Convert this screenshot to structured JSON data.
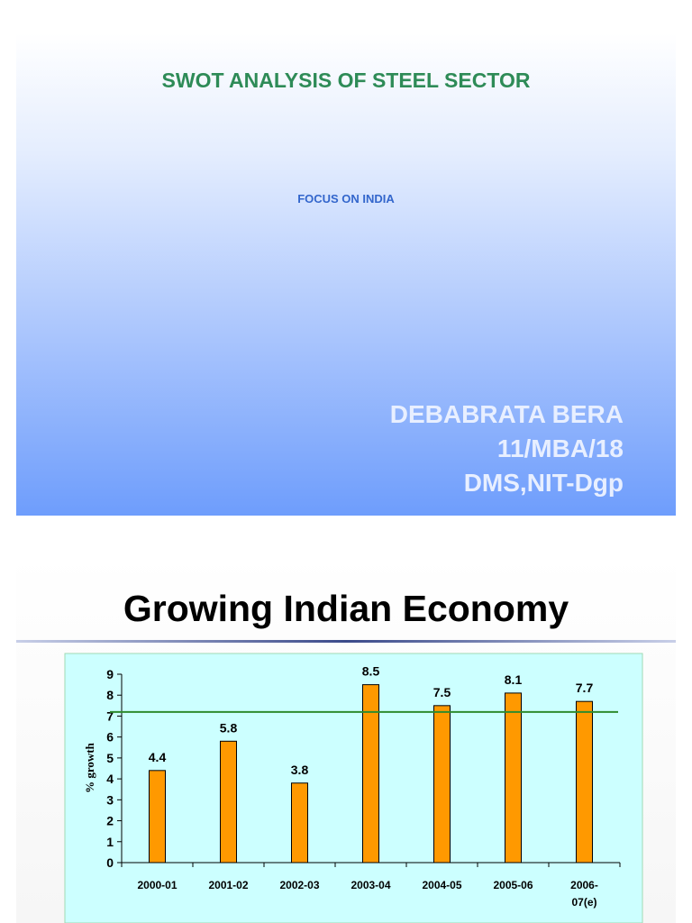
{
  "slide1": {
    "title": "SWOT ANALYSIS OF STEEL SECTOR",
    "subtitle": "FOCUS ON INDIA",
    "author_lines": [
      "DEBABRATA BERA",
      "11/MBA/18",
      "DMS,NIT-Dgp"
    ]
  },
  "slide2": {
    "title": "Growing Indian Economy"
  },
  "colors": {
    "bar": "#ff9900",
    "plot_background": "#ccffff",
    "reference_line": "#2e8b2e"
  },
  "chart_data": {
    "type": "bar",
    "categories": [
      "2000-01",
      "2001-02",
      "2002-03",
      "2003-04",
      "2004-05",
      "2005-06",
      "2006-07(e)"
    ],
    "category_labels": [
      [
        "2000-01"
      ],
      [
        "2001-02"
      ],
      [
        "2002-03"
      ],
      [
        "2003-04"
      ],
      [
        "2004-05"
      ],
      [
        "2005-06"
      ],
      [
        "2006-",
        "07(e)"
      ]
    ],
    "values": [
      4.4,
      5.8,
      3.8,
      8.5,
      7.5,
      8.1,
      7.7
    ],
    "data_labels": [
      "4.4",
      "5.8",
      "3.8",
      "8.5",
      "7.5",
      "8.1",
      "7.7"
    ],
    "ylabel": "% growth",
    "xlabel": "",
    "ylim": [
      0,
      9
    ],
    "yticks": [
      "0",
      "1",
      "2",
      "3",
      "4",
      "5",
      "6",
      "7",
      "8",
      "9"
    ],
    "reference_line_value": 7.5,
    "grid": false,
    "legend": "none"
  }
}
